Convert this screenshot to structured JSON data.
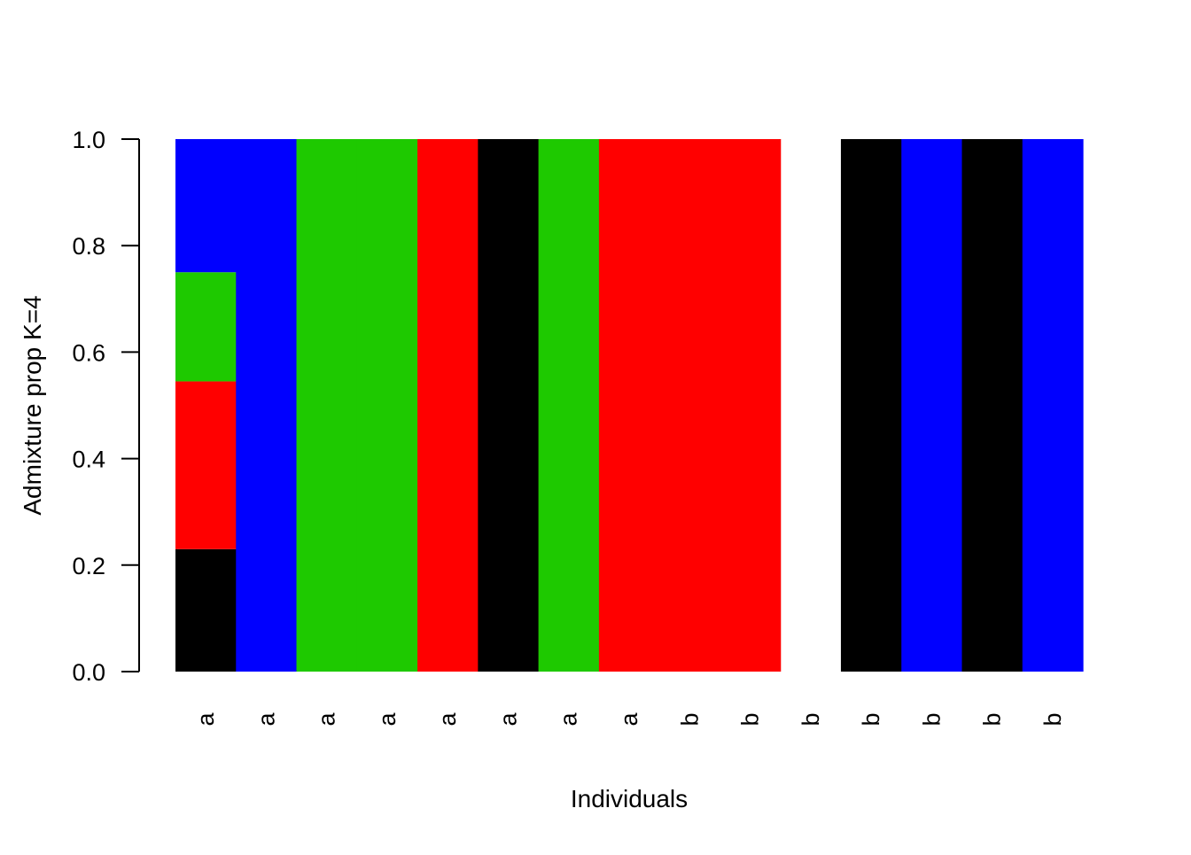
{
  "chart_data": {
    "type": "bar",
    "stacked": true,
    "title": "",
    "xlabel": "Individuals",
    "ylabel": "Admixture prop K=4",
    "ylim": [
      0,
      1
    ],
    "yticks": [
      "0.0",
      "0.2",
      "0.4",
      "0.6",
      "0.8",
      "1.0"
    ],
    "categories": [
      "a",
      "a",
      "a",
      "a",
      "a",
      "a",
      "a",
      "a",
      "b",
      "b",
      "b",
      "b",
      "b",
      "b",
      "b"
    ],
    "series": [
      {
        "color": "#000000",
        "values": [
          0.23,
          0,
          0,
          0,
          0,
          1,
          0,
          0,
          0,
          0,
          0,
          1,
          0,
          1,
          0
        ]
      },
      {
        "color": "#ff0000",
        "values": [
          0.315,
          0,
          0,
          0,
          1,
          0,
          0,
          1,
          1,
          1,
          0,
          0,
          0,
          0,
          0
        ]
      },
      {
        "color": "#1ec900",
        "values": [
          0.205,
          0,
          1,
          1,
          0,
          0,
          1,
          0,
          0,
          0,
          0,
          0,
          0,
          0,
          0
        ]
      },
      {
        "color": "#0000ff",
        "values": [
          0.25,
          1,
          0,
          0,
          0,
          0,
          0,
          0,
          0,
          0,
          0,
          0,
          1,
          0,
          1
        ]
      }
    ],
    "legend": "none",
    "grid": false
  }
}
